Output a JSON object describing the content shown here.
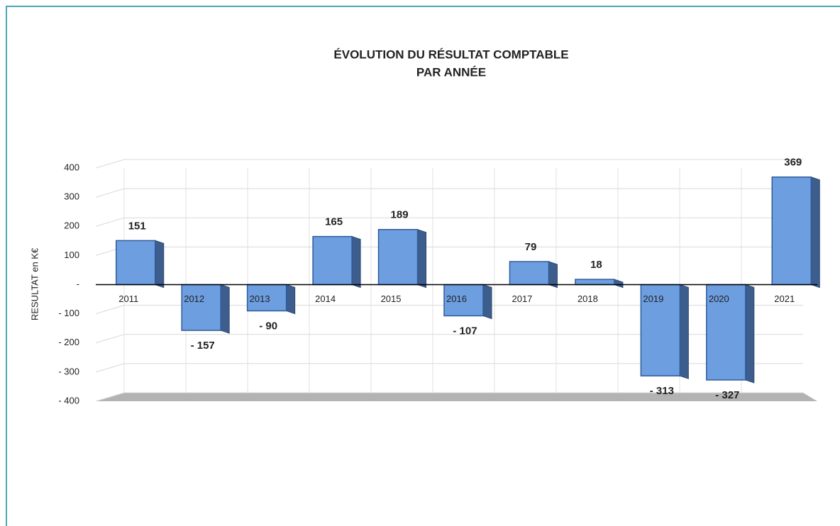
{
  "chart_data": {
    "type": "bar",
    "title": [
      "ÉVOLUTION DU RÉSULTAT COMPTABLE",
      "PAR ANNÉE"
    ],
    "y_label": "RESULTAT  en  K€",
    "categories": [
      "2011",
      "2012",
      "2013",
      "2014",
      "2015",
      "2016",
      "2017",
      "2018",
      "2019",
      "2020",
      "2021"
    ],
    "values": [
      151,
      -157,
      -90,
      165,
      189,
      -107,
      79,
      18,
      -313,
      -327,
      369
    ],
    "value_labels": [
      "151",
      "- 157",
      "- 90",
      "165",
      "189",
      "- 107",
      "79",
      "18",
      "- 313",
      "- 327",
      "369"
    ],
    "color": "#6d9ee0",
    "ylim": [
      -400,
      400
    ],
    "yticks": [
      400,
      300,
      200,
      100,
      {
        "value": 0,
        "label": "-"
      },
      {
        "value": -100,
        "label": "- 100"
      },
      {
        "value": -200,
        "label": "- 200"
      },
      {
        "value": -300,
        "label": "- 300"
      },
      {
        "value": -400,
        "label": "- 400"
      }
    ],
    "grid": true
  }
}
